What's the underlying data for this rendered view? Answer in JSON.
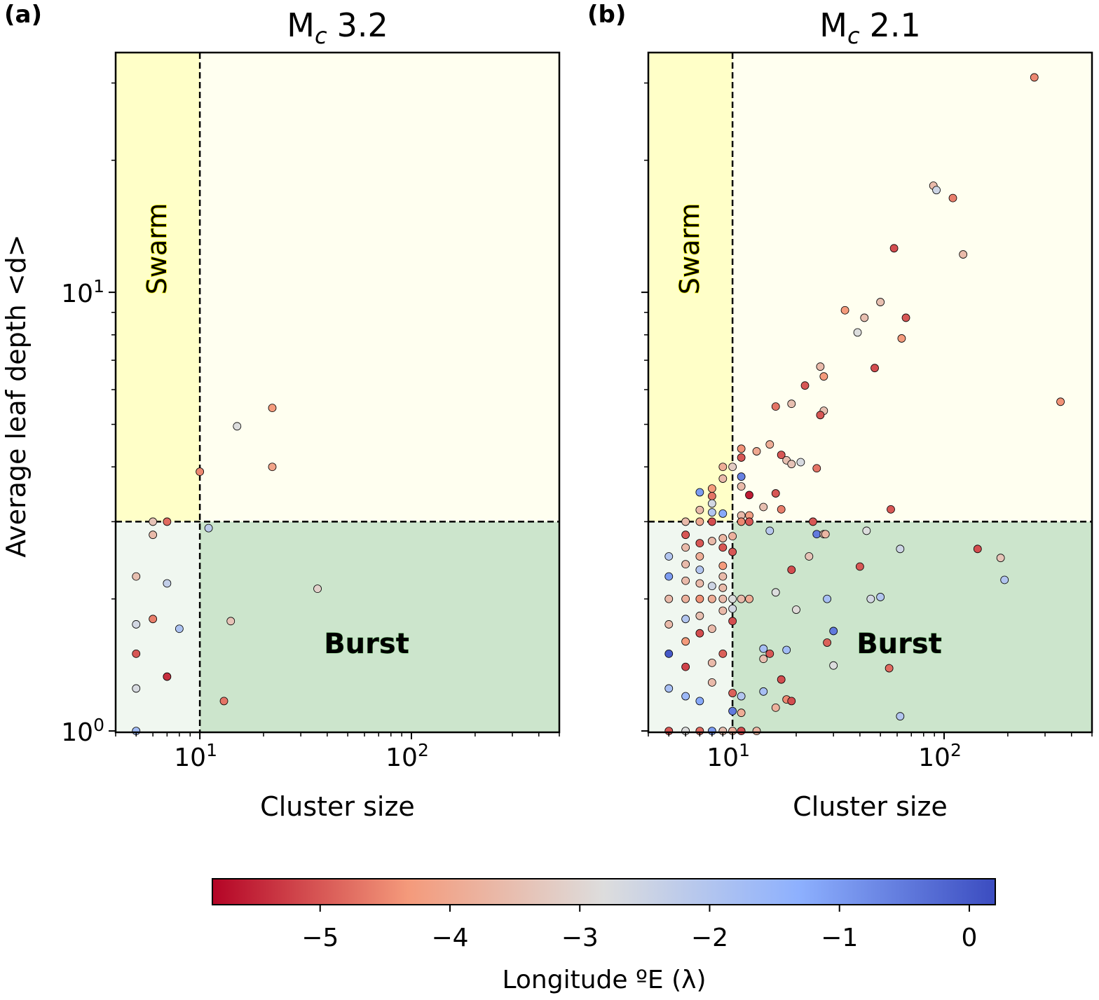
{
  "chart_data": [
    {
      "type": "scatter",
      "panel_label": "(a)",
      "title_main": "M",
      "title_sub": "c",
      "title_value": "3.2",
      "xlabel": "Cluster size",
      "ylabel": "Average leaf depth <d>",
      "xscale": "log",
      "yscale": "log",
      "xlim": [
        4,
        500
      ],
      "ylim": [
        0.993,
        35.2
      ],
      "xticks": [
        {
          "value": 10,
          "base": "10",
          "exp": "1"
        },
        {
          "value": 100,
          "base": "10",
          "exp": "2"
        }
      ],
      "yticks": [
        {
          "value": 1,
          "base": "10",
          "exp": "0"
        },
        {
          "value": 10,
          "base": "10",
          "exp": "1"
        }
      ],
      "thresholds": {
        "x": 10,
        "y": 3
      },
      "region_labels": {
        "swarm": "Swarm",
        "burst": "Burst"
      },
      "region_colors": {
        "swarm": "#ffffc8",
        "upper_right": "#fffff0",
        "lower_left": "#f0f7f0",
        "burst": "#cce5cc"
      },
      "points_format": [
        "cluster_size",
        "avg_leaf_depth",
        "longitude"
      ],
      "points": [
        [
          22,
          5.45,
          -4.3
        ],
        [
          15,
          4.95,
          -2.8
        ],
        [
          22,
          4.0,
          -4.1
        ],
        [
          10,
          3.9,
          -4.5
        ],
        [
          6,
          3,
          -3.4
        ],
        [
          7,
          3,
          -4.8
        ],
        [
          6,
          2.8,
          -3.6
        ],
        [
          11,
          2.9,
          -2.2
        ],
        [
          5,
          2.25,
          -3.5
        ],
        [
          7,
          2.17,
          -2.3
        ],
        [
          36,
          2.11,
          -3.1
        ],
        [
          5,
          1.75,
          -2.6
        ],
        [
          6,
          1.8,
          -4.6
        ],
        [
          8,
          1.71,
          -1.9
        ],
        [
          14,
          1.78,
          -3.4
        ],
        [
          5,
          1.5,
          -5.0
        ],
        [
          7,
          1.33,
          -5.4
        ],
        [
          5,
          1.25,
          -2.7
        ],
        [
          13,
          1.17,
          -4.7
        ],
        [
          5,
          1,
          -1.7
        ]
      ]
    },
    {
      "type": "scatter",
      "panel_label": "(b)",
      "title_main": "M",
      "title_sub": "c",
      "title_value": "2.1",
      "xlabel": "Cluster size",
      "ylabel": "",
      "xscale": "log",
      "yscale": "log",
      "xlim": [
        4,
        500
      ],
      "ylim": [
        0.993,
        35.2
      ],
      "xticks": [
        {
          "value": 10,
          "base": "10",
          "exp": "1"
        },
        {
          "value": 100,
          "base": "10",
          "exp": "2"
        }
      ],
      "yticks": [
        {
          "value": 1,
          "base": "",
          "exp": ""
        },
        {
          "value": 10,
          "base": "",
          "exp": ""
        }
      ],
      "thresholds": {
        "x": 10,
        "y": 3
      },
      "region_labels": {
        "swarm": "Swarm",
        "burst": "Burst"
      },
      "region_colors": {
        "swarm": "#ffffc8",
        "upper_right": "#fffff0",
        "lower_left": "#f0f7f0",
        "burst": "#cce5cc"
      },
      "points_format": [
        "cluster_size",
        "avg_leaf_depth",
        "longitude"
      ],
      "points": [
        [
          5,
          2.5,
          -2.0
        ],
        [
          5,
          2.25,
          -1.0
        ],
        [
          5,
          2,
          -3.6
        ],
        [
          5,
          1.75,
          -3.6
        ],
        [
          5,
          1.5,
          0
        ],
        [
          5,
          1.25,
          -1.8
        ],
        [
          5,
          1,
          -5.0
        ],
        [
          6,
          3,
          -3.6
        ],
        [
          6,
          2.8,
          -5.0
        ],
        [
          6,
          2.62,
          -3.6
        ],
        [
          6,
          2.4,
          -3.6
        ],
        [
          6,
          2.2,
          -3.6
        ],
        [
          6,
          2,
          -3.8
        ],
        [
          6,
          1.8,
          -2.0
        ],
        [
          6,
          1.6,
          -4.3
        ],
        [
          6,
          1.4,
          -5.2
        ],
        [
          6,
          1.2,
          -1.6
        ],
        [
          6,
          1,
          -2.8
        ],
        [
          7,
          3.5,
          -1.0
        ],
        [
          7,
          3.19,
          -3.6
        ],
        [
          7,
          3,
          -4.0
        ],
        [
          7,
          2.68,
          -5.0
        ],
        [
          7,
          2.5,
          -3.9
        ],
        [
          7,
          2.33,
          -2.0
        ],
        [
          7,
          2.17,
          -3.6
        ],
        [
          7,
          2,
          -4.4
        ],
        [
          7,
          1.83,
          -3.5
        ],
        [
          7,
          1.67,
          -5.1
        ],
        [
          7,
          1.17,
          -1.2
        ],
        [
          7,
          1,
          -4.8
        ],
        [
          8,
          3.57,
          -4.3
        ],
        [
          8,
          3.43,
          -4.7
        ],
        [
          8,
          3.3,
          -2.6
        ],
        [
          8,
          3.15,
          -2.0
        ],
        [
          8,
          3,
          -5.1
        ],
        [
          8,
          2.71,
          -3.6
        ],
        [
          8,
          2.14,
          -2.5
        ],
        [
          8,
          2,
          -3.9
        ],
        [
          8,
          1.71,
          -3.6
        ],
        [
          8,
          1.43,
          -3.6
        ],
        [
          8,
          1.29,
          -3.6
        ],
        [
          8,
          1,
          -1.0
        ],
        [
          9,
          4,
          -3.9
        ],
        [
          9,
          3.76,
          -3.6
        ],
        [
          9,
          3.13,
          -1.2
        ],
        [
          9,
          2.75,
          -3.7
        ],
        [
          9,
          2.62,
          -5.0
        ],
        [
          9,
          2.38,
          -4.3
        ],
        [
          9,
          2.25,
          -3.6
        ],
        [
          9,
          2.12,
          -3.6
        ],
        [
          9,
          2,
          -3.6
        ],
        [
          9,
          1.88,
          -3.6
        ],
        [
          9,
          1.5,
          -4.9
        ],
        [
          9,
          1,
          -3.5
        ],
        [
          10,
          4,
          -3.2
        ],
        [
          10,
          2.78,
          -3.8
        ],
        [
          10,
          2.56,
          -5.0
        ],
        [
          10,
          2,
          -2.8
        ],
        [
          10,
          1.9,
          -2.6
        ],
        [
          10,
          1.78,
          -5.1
        ],
        [
          10,
          1.22,
          -4.9
        ],
        [
          10,
          1.11,
          -0.5
        ],
        [
          10,
          1,
          -3.8
        ],
        [
          11,
          4.4,
          -4.4
        ],
        [
          11,
          4.2,
          -5.0
        ],
        [
          11,
          3.8,
          -0.6
        ],
        [
          11,
          3.61,
          -3.6
        ],
        [
          11,
          3.1,
          -3.6
        ],
        [
          11,
          3,
          -4.5
        ],
        [
          11,
          2,
          -3.6
        ],
        [
          11,
          1.2,
          -2.0
        ],
        [
          11,
          1.1,
          -3.9
        ],
        [
          11,
          1,
          -5.1
        ],
        [
          12,
          3.45,
          -5.6
        ],
        [
          12,
          3.1,
          -4.2
        ],
        [
          12,
          3,
          -5.0
        ],
        [
          12,
          2,
          -3.9
        ],
        [
          13,
          4.34,
          -4.0
        ],
        [
          15,
          4.5,
          -3.9
        ],
        [
          17,
          4.26,
          -5.0
        ],
        [
          18,
          4.14,
          -3.5
        ],
        [
          19,
          4.06,
          -3.4
        ],
        [
          21,
          4.1,
          -2.7
        ],
        [
          25,
          3.97,
          -4.7
        ],
        [
          14,
          3.24,
          -3.5
        ],
        [
          16,
          3.48,
          -5.0
        ],
        [
          17,
          3.2,
          -4.6
        ],
        [
          24,
          3,
          -5.0
        ],
        [
          15,
          2.86,
          -2.1
        ],
        [
          25,
          2.81,
          -0.5
        ],
        [
          27,
          2.81,
          -3.5
        ],
        [
          27.5,
          2.81,
          -3.7
        ],
        [
          23,
          2.5,
          -3.4
        ],
        [
          19,
          2.33,
          -5.1
        ],
        [
          16,
          2.07,
          -2.8
        ],
        [
          28,
          2,
          -1.8
        ],
        [
          20,
          1.89,
          -2.9
        ],
        [
          30,
          1.69,
          -0.5
        ],
        [
          28,
          1.59,
          -4.9
        ],
        [
          14,
          1.54,
          -1.8
        ],
        [
          15,
          1.5,
          -5.0
        ],
        [
          18,
          1.53,
          -1.7
        ],
        [
          14,
          1.46,
          -3.5
        ],
        [
          30,
          1.41,
          -2.8
        ],
        [
          17,
          1.31,
          -5.1
        ],
        [
          14,
          1.23,
          -1.8
        ],
        [
          18,
          1.18,
          -4.5
        ],
        [
          19,
          1.17,
          -5.1
        ],
        [
          16,
          1.13,
          -3.8
        ],
        [
          13,
          1,
          -3.7
        ],
        [
          267,
          30.9,
          -4.5
        ],
        [
          89,
          17.5,
          -3.6
        ],
        [
          92,
          17.1,
          -2.5
        ],
        [
          110,
          16.4,
          -4.6
        ],
        [
          58,
          12.6,
          -5.1
        ],
        [
          123,
          12.2,
          -3.6
        ],
        [
          34,
          9.1,
          -4.3
        ],
        [
          50,
          9.5,
          -3.5
        ],
        [
          42,
          8.75,
          -3.5
        ],
        [
          66,
          8.75,
          -5.0
        ],
        [
          39,
          8.1,
          -2.8
        ],
        [
          63,
          7.85,
          -4.3
        ],
        [
          47,
          6.72,
          -5.1
        ],
        [
          26,
          6.77,
          -3.6
        ],
        [
          27,
          6.43,
          -4.3
        ],
        [
          22,
          6.13,
          -5.0
        ],
        [
          19,
          5.57,
          -3.5
        ],
        [
          16,
          5.49,
          -4.7
        ],
        [
          27,
          5.37,
          -3.5
        ],
        [
          26,
          5.25,
          -5.0
        ],
        [
          355,
          5.63,
          -4.4
        ],
        [
          56,
          3.2,
          -5.0
        ],
        [
          43,
          2.86,
          -2.8
        ],
        [
          62,
          2.6,
          -2.5
        ],
        [
          144,
          2.6,
          -5.1
        ],
        [
          185,
          2.48,
          -3.4
        ],
        [
          193,
          2.21,
          -2.0
        ],
        [
          40,
          2.37,
          -5.0
        ],
        [
          45,
          2.0,
          -2.6
        ],
        [
          50,
          2.02,
          -2.0
        ],
        [
          55,
          1.39,
          -4.8
        ],
        [
          62,
          1.08,
          -2.0
        ]
      ]
    }
  ],
  "colorbar": {
    "label": "Longitude ºE (λ)",
    "colormap": "coolwarm_r",
    "range": [
      -5.83,
      0.2
    ],
    "ticks": [
      {
        "value": -5,
        "label": "−5"
      },
      {
        "value": -4,
        "label": "−4"
      },
      {
        "value": -3,
        "label": "−3"
      },
      {
        "value": -2,
        "label": "−2"
      },
      {
        "value": -1,
        "label": "−1"
      },
      {
        "value": 0,
        "label": "0"
      }
    ],
    "colors": [
      "#b40426",
      "#f49a7b",
      "#dddddd",
      "#8db0fe",
      "#3b4cc0"
    ]
  }
}
